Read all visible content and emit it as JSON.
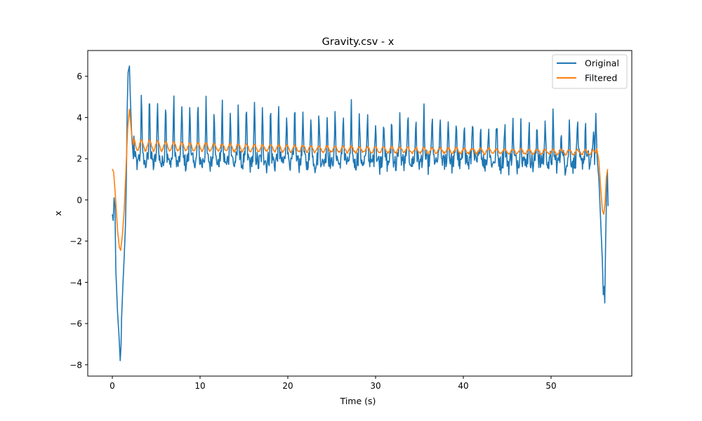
{
  "chart_data": {
    "type": "line",
    "title": "Gravity.csv - x",
    "xlabel": "Time (s)",
    "ylabel": "x",
    "xlim": [
      -2.8,
      59.2
    ],
    "ylim": [
      -8.55,
      7.25
    ],
    "xticks": [
      0,
      10,
      20,
      30,
      40,
      50
    ],
    "yticks": [
      -8,
      -6,
      -4,
      -2,
      0,
      2,
      4,
      6
    ],
    "xtick_labels": [
      "0",
      "10",
      "20",
      "30",
      "40",
      "50"
    ],
    "ytick_labels": [
      "−8",
      "−6",
      "−4",
      "−2",
      "0",
      "2",
      "4",
      "6"
    ],
    "grid": false,
    "legend_position": "top-right",
    "series": [
      {
        "name": "Original",
        "color": "#1f77b4",
        "anchors": [
          [
            0.0,
            -0.7
          ],
          [
            0.1,
            -1.0
          ],
          [
            0.2,
            0.1
          ],
          [
            0.3,
            -0.3
          ],
          [
            0.4,
            -3.4
          ],
          [
            0.6,
            -5.5
          ],
          [
            0.75,
            -6.5
          ],
          [
            0.9,
            -7.8
          ],
          [
            1.0,
            -7.0
          ],
          [
            1.05,
            -5.8
          ],
          [
            1.2,
            -4.2
          ],
          [
            1.35,
            -2.8
          ],
          [
            1.5,
            -1.2
          ],
          [
            1.6,
            1.0
          ],
          [
            1.7,
            4.5
          ],
          [
            1.8,
            6.2
          ],
          [
            1.95,
            6.5
          ],
          [
            2.05,
            5.0
          ],
          [
            2.2,
            3.2
          ],
          [
            2.4,
            2.0
          ],
          [
            55.0,
            2.5
          ],
          [
            55.1,
            4.2
          ],
          [
            55.25,
            2.0
          ],
          [
            55.45,
            1.0
          ],
          [
            55.6,
            -0.5
          ],
          [
            55.75,
            -2.0
          ],
          [
            55.85,
            -3.0
          ],
          [
            55.95,
            -4.6
          ],
          [
            56.05,
            -4.2
          ],
          [
            56.12,
            -5.0
          ],
          [
            56.22,
            -2.0
          ],
          [
            56.32,
            0.3
          ],
          [
            56.42,
            1.4
          ],
          [
            56.5,
            -0.3
          ]
        ],
        "periodic": {
          "x_range": [
            2.4,
            55.0
          ],
          "period_s": 0.92,
          "peak_start": 5.7,
          "peak_end": 3.6,
          "base_start": 2.0,
          "base_end": 2.0,
          "noise_amplitude": 0.35
        }
      },
      {
        "name": "Filtered",
        "color": "#ff7f0e",
        "anchors": [
          [
            0.0,
            1.5
          ],
          [
            0.15,
            1.35
          ],
          [
            0.35,
            0.2
          ],
          [
            0.6,
            -1.5
          ],
          [
            0.8,
            -2.3
          ],
          [
            0.95,
            -2.45
          ],
          [
            1.15,
            -1.7
          ],
          [
            1.35,
            -0.5
          ],
          [
            1.55,
            1.4
          ],
          [
            1.75,
            3.5
          ],
          [
            1.95,
            4.4
          ],
          [
            2.2,
            3.2
          ],
          [
            2.4,
            2.7
          ],
          [
            55.2,
            2.5
          ],
          [
            55.45,
            1.9
          ],
          [
            55.65,
            0.6
          ],
          [
            55.85,
            -0.5
          ],
          [
            56.0,
            -0.7
          ],
          [
            56.15,
            -0.2
          ],
          [
            56.3,
            1.1
          ],
          [
            56.45,
            1.5
          ]
        ],
        "periodic": {
          "x_range": [
            2.4,
            55.2
          ],
          "period_s": 0.92,
          "peak_start": 3.6,
          "peak_end": 2.6,
          "base_start": 2.4,
          "base_end": 2.2,
          "noise_amplitude": 0.05
        }
      }
    ]
  }
}
